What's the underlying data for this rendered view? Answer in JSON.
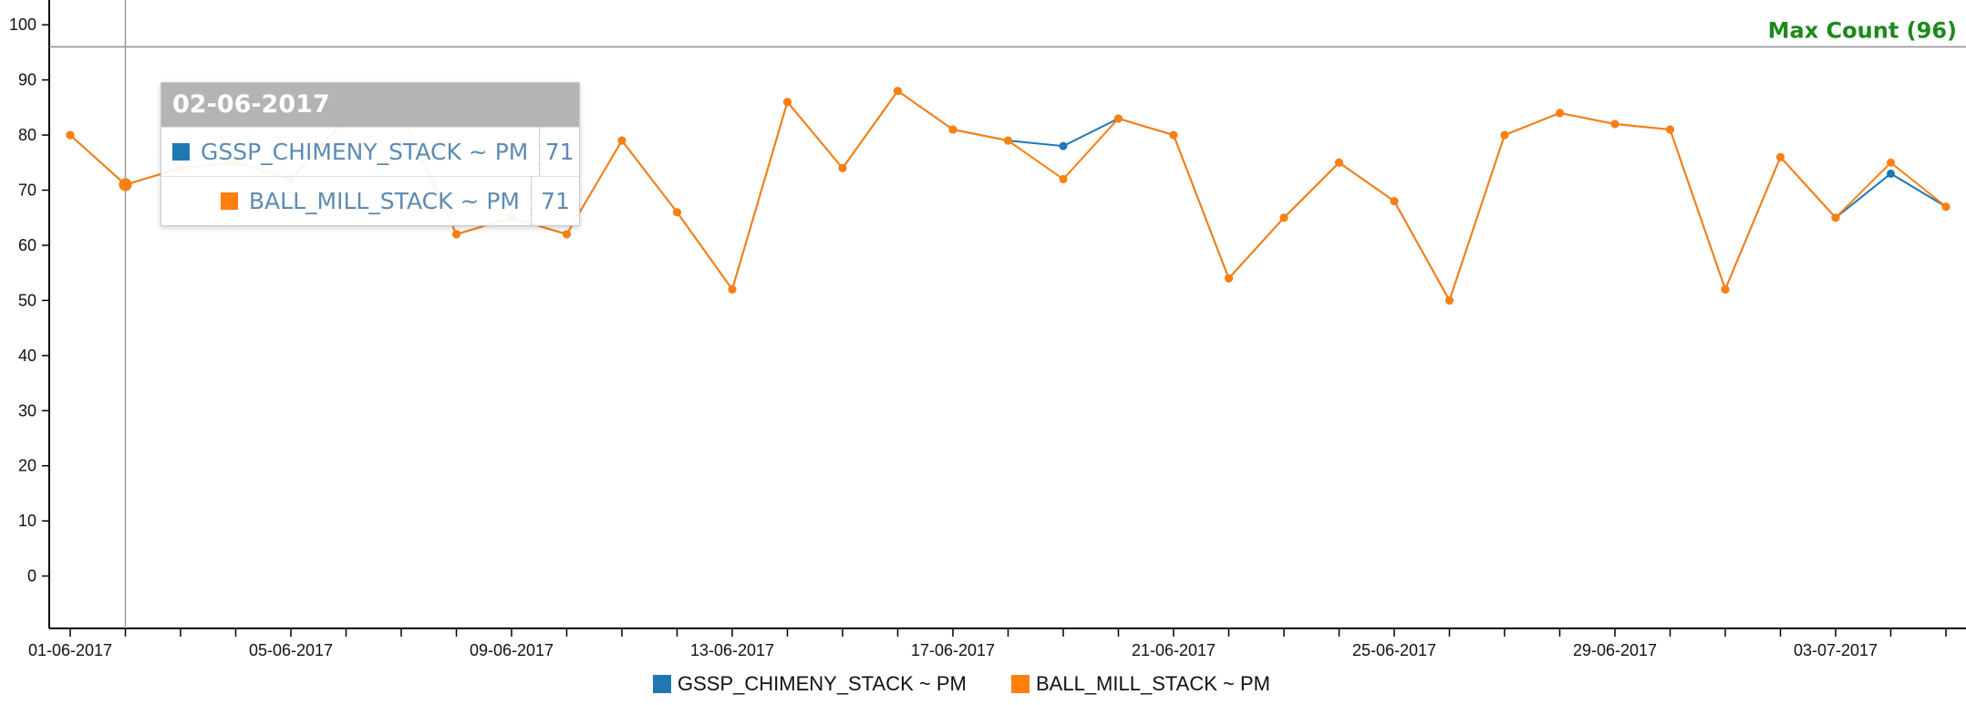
{
  "chart_data": {
    "type": "line",
    "x": [
      "01-06-2017",
      "02-06-2017",
      "03-06-2017",
      "04-06-2017",
      "05-06-2017",
      "06-06-2017",
      "07-06-2017",
      "08-06-2017",
      "09-06-2017",
      "10-06-2017",
      "11-06-2017",
      "12-06-2017",
      "13-06-2017",
      "14-06-2017",
      "15-06-2017",
      "16-06-2017",
      "17-06-2017",
      "18-06-2017",
      "19-06-2017",
      "20-06-2017",
      "21-06-2017",
      "22-06-2017",
      "23-06-2017",
      "24-06-2017",
      "25-06-2017",
      "26-06-2017",
      "27-06-2017",
      "28-06-2017",
      "29-06-2017",
      "30-06-2017",
      "01-07-2017",
      "02-07-2017",
      "03-07-2017",
      "04-07-2017",
      "05-07-2017"
    ],
    "tick_labels": [
      "01-06-2017",
      "05-06-2017",
      "09-06-2017",
      "13-06-2017",
      "17-06-2017",
      "21-06-2017",
      "25-06-2017",
      "29-06-2017",
      "03-07-2017"
    ],
    "y_ticks": [
      0,
      10,
      20,
      30,
      40,
      50,
      60,
      70,
      80,
      90,
      100
    ],
    "ylim": [
      -9.5,
      104.5
    ],
    "series": [
      {
        "name": "GSSP_CHIMENY_STACK ~ PM",
        "color": "#1f77b4",
        "values": [
          80,
          71,
          74,
          75,
          72,
          83,
          84,
          62,
          65,
          62,
          79,
          66,
          52,
          86,
          74,
          88,
          81,
          79,
          78,
          83,
          80,
          54,
          65,
          75,
          68,
          50,
          80,
          84,
          82,
          81,
          52,
          76,
          65,
          73,
          67
        ]
      },
      {
        "name": "BALL_MILL_STACK ~ PM",
        "color": "#ff7f0e",
        "values": [
          80,
          71,
          74,
          75,
          72,
          83,
          84,
          62,
          65,
          62,
          79,
          66,
          52,
          86,
          74,
          88,
          81,
          79,
          72,
          83,
          80,
          54,
          65,
          75,
          68,
          50,
          80,
          84,
          82,
          81,
          52,
          76,
          65,
          75,
          67
        ]
      }
    ],
    "max_line": {
      "value": 96,
      "label": "Max Count (96)",
      "color": "#1a8a1a"
    },
    "hover_index": 1,
    "grid": false,
    "legend_position": "bottom-center"
  },
  "tooltip": {
    "title": "02-06-2017",
    "rows": [
      {
        "key": "GSSP_CHIMENY_STACK ~ PM",
        "value": "71",
        "color": "#1f77b4"
      },
      {
        "key": "BALL_MILL_STACK ~ PM",
        "value": "71",
        "color": "#ff7f0e"
      }
    ]
  }
}
